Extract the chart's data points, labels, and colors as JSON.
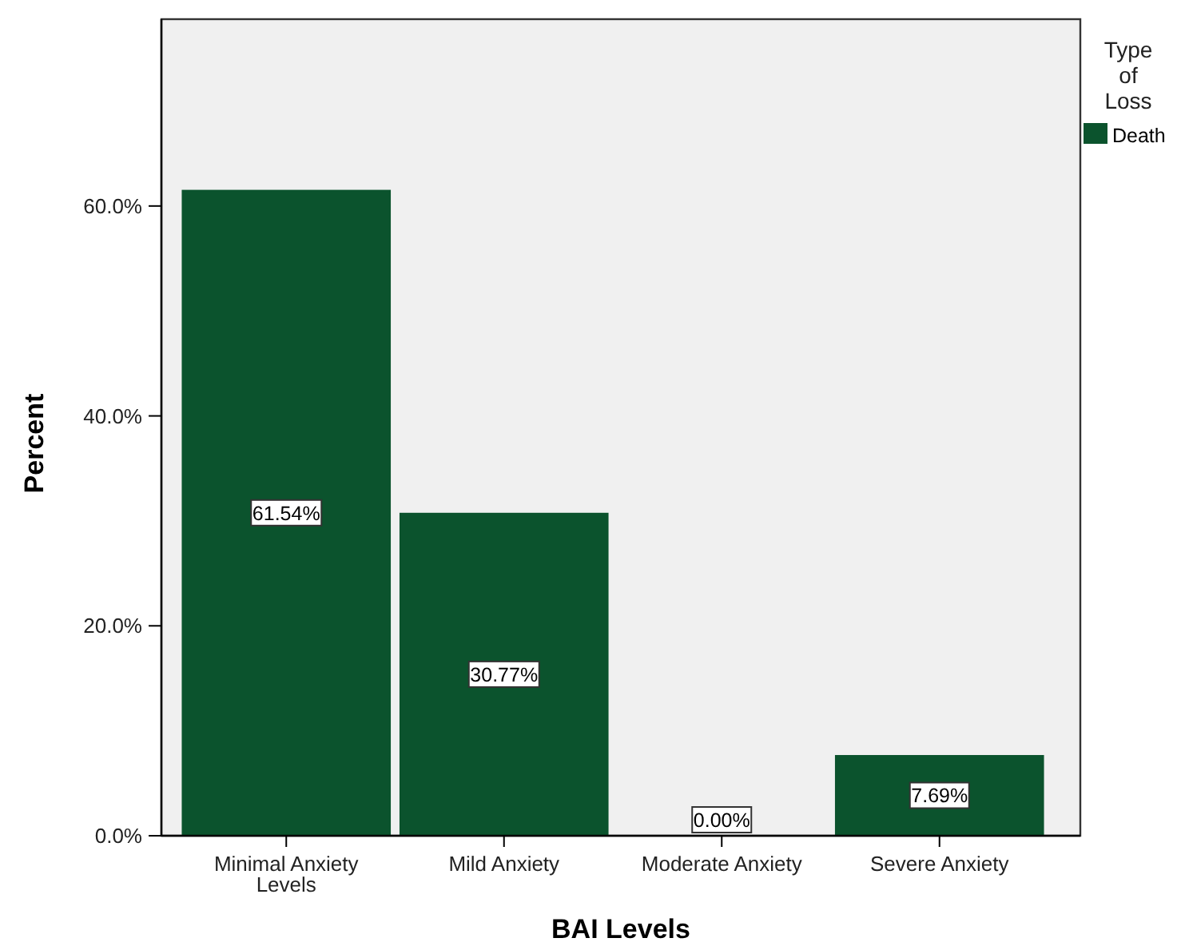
{
  "chart_data": {
    "type": "bar",
    "xlabel": "BAI Levels",
    "ylabel": "Percent",
    "legend_title": "Type of Loss",
    "categories": [
      "Minimal Anxiety Levels",
      "Mild Anxiety",
      "Moderate Anxiety",
      "Severe Anxiety"
    ],
    "series": [
      {
        "name": "Death",
        "color": "#0b532d",
        "values": [
          61.54,
          30.77,
          0,
          7.69
        ],
        "value_labels": [
          "61.54%",
          "30.77%",
          "0.00%",
          "7.69%"
        ]
      }
    ],
    "ylim": [
      0,
      77.8
    ],
    "yticks": [
      {
        "value": 0,
        "label": "0.0%"
      },
      {
        "value": 20,
        "label": "20.0%"
      },
      {
        "value": 40,
        "label": "40.0%"
      },
      {
        "value": 60,
        "label": "60.0%"
      }
    ],
    "grid": false,
    "legend": "top right"
  }
}
